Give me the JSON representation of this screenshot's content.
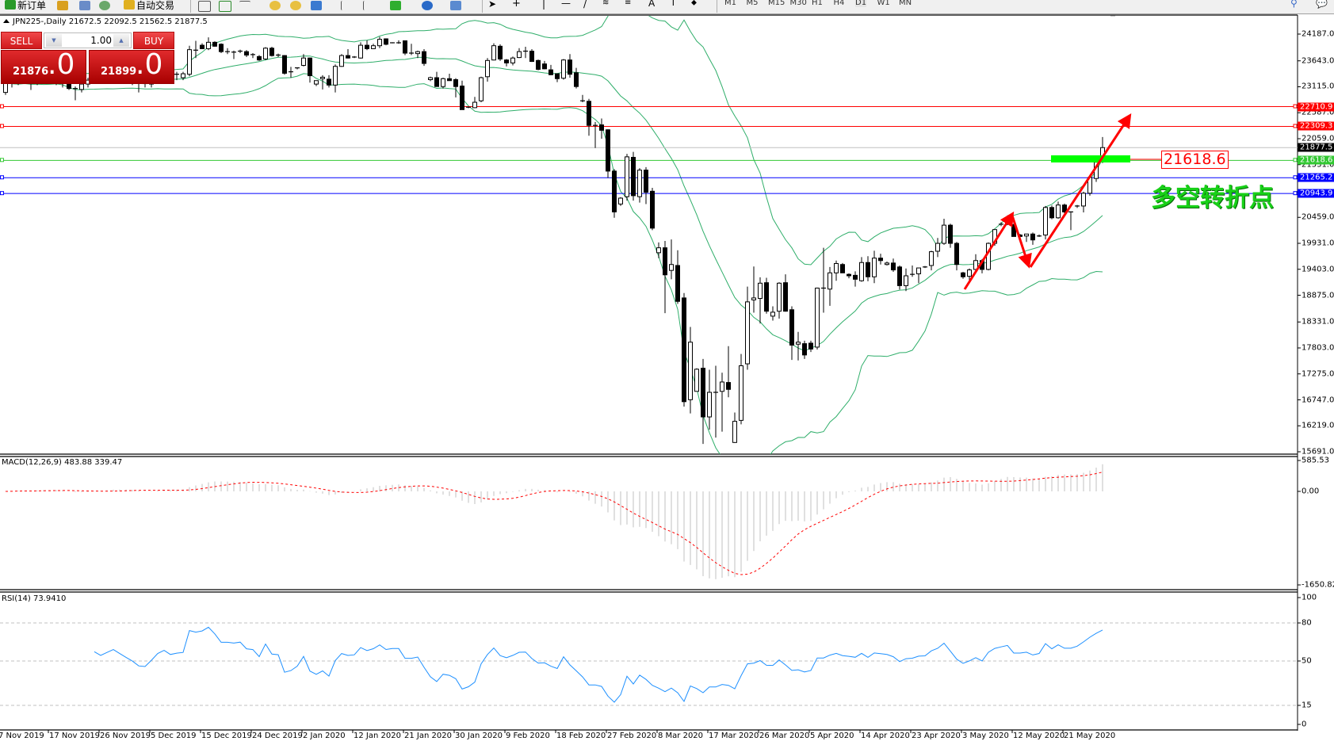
{
  "toolbar": {
    "new_order": "新订单",
    "auto_trading": "自动交易",
    "timeframes": [
      "M1",
      "M5",
      "M15",
      "M30",
      "H1",
      "H4",
      "D1",
      "W1",
      "MN"
    ],
    "active_timeframe": "D1"
  },
  "chart": {
    "title": "JPN225-,Daily  21672.5 22092.5 21562.5 21877.5",
    "symbol": "JPN225-",
    "period": "Daily"
  },
  "trade_panel": {
    "sell_label": "SELL",
    "buy_label": "BUY",
    "lot": "1.00",
    "sell_price_main": "21876",
    "sell_price_frac": ".0",
    "buy_price_main": "21899",
    "buy_price_frac": ".0"
  },
  "price_axis": [
    "24187.0",
    "23643.0",
    "23115.0",
    "22587.0",
    "22059.0",
    "21531.0",
    "20459.0",
    "19931.0",
    "19403.0",
    "18875.0",
    "18331.0",
    "17803.0",
    "17275.0",
    "16747.0",
    "16219.0",
    "15691.0"
  ],
  "levels": [
    {
      "value": "22710.9",
      "color": "#ff0000"
    },
    {
      "value": "22309.3",
      "color": "#ff0000"
    },
    {
      "value": "21877.5",
      "color": "#000000",
      "line_color": "#c0c0c0"
    },
    {
      "value": "21618.6",
      "color": "#32c832"
    },
    {
      "value": "21265.2",
      "color": "#0000ff"
    },
    {
      "value": "20943.9",
      "color": "#0000ff"
    }
  ],
  "annotations": {
    "level_note": "21618.6",
    "turning_point": "多空转折点"
  },
  "macd": {
    "label": "MACD(12,26,9) 483.88 339.47",
    "axis": [
      "585.53",
      "0.00",
      "-1650.82"
    ]
  },
  "rsi": {
    "label": "RSI(14) 73.9410",
    "axis": [
      "100",
      "80",
      "50",
      "15",
      "0"
    ]
  },
  "dates": [
    "7 Nov 2019",
    "17 Nov 2019",
    "26 Nov 2019",
    "5 Dec 2019",
    "15 Dec 2019",
    "24 Dec 2019",
    "2 Jan 2020",
    "12 Jan 2020",
    "21 Jan 2020",
    "30 Jan 2020",
    "9 Feb 2020",
    "18 Feb 2020",
    "27 Feb 2020",
    "8 Mar 2020",
    "17 Mar 2020",
    "26 Mar 2020",
    "5 Apr 2020",
    "14 Apr 2020",
    "23 Apr 2020",
    "3 May 2020",
    "12 May 2020",
    "21 May 2020"
  ],
  "colors": {
    "bands": "#2fae6a",
    "macd_hist": "#c0c0c0",
    "macd_signal": "#ff0000",
    "rsi": "#1e90ff",
    "arrows": "#ff0000",
    "zone": "#00ff00"
  },
  "chart_data": {
    "type": "candlestick",
    "ylim": [
      15691.0,
      24187.0
    ],
    "columns": [
      "open",
      "high",
      "low",
      "close"
    ],
    "ohlc": [
      [
        23000,
        23300,
        22950,
        23200
      ],
      [
        23200,
        23350,
        23100,
        23250
      ],
      [
        23250,
        23400,
        23150,
        23300
      ],
      [
        23300,
        23400,
        23200,
        23250
      ],
      [
        23250,
        23350,
        23050,
        23200
      ],
      [
        23200,
        23350,
        23150,
        23300
      ],
      [
        23300,
        23450,
        23200,
        23350
      ],
      [
        23350,
        23400,
        23200,
        23250
      ],
      [
        23250,
        23350,
        23150,
        23300
      ],
      [
        23300,
        23350,
        23100,
        23180
      ],
      [
        23180,
        23200,
        23050,
        23080
      ],
      [
        23080,
        23120,
        22840,
        23060
      ],
      [
        23060,
        23200,
        23000,
        23170
      ],
      [
        23170,
        23300,
        23100,
        23250
      ],
      [
        23250,
        23400,
        23200,
        23350
      ],
      [
        23350,
        23450,
        23250,
        23300
      ],
      [
        23300,
        23400,
        23200,
        23350
      ],
      [
        23350,
        23450,
        23250,
        23400
      ],
      [
        23400,
        23500,
        23300,
        23350
      ],
      [
        23350,
        23450,
        23200,
        23300
      ],
      [
        23300,
        23350,
        23150,
        23250
      ],
      [
        23250,
        23280,
        23000,
        23180
      ],
      [
        23180,
        23250,
        23100,
        23170
      ],
      [
        23170,
        23300,
        23100,
        23250
      ],
      [
        23250,
        23400,
        23200,
        23350
      ],
      [
        23350,
        23450,
        23300,
        23400
      ],
      [
        23400,
        23450,
        23300,
        23350
      ],
      [
        23350,
        23420,
        23250,
        23370
      ],
      [
        23300,
        23420,
        23250,
        23380
      ],
      [
        23370,
        23950,
        23330,
        23870
      ],
      [
        23860,
        24050,
        23700,
        23850
      ],
      [
        23960,
        24000,
        23880,
        23890
      ],
      [
        23890,
        24120,
        23860,
        24020
      ],
      [
        24020,
        24040,
        23930,
        23940
      ],
      [
        23980,
        24000,
        23800,
        23830
      ],
      [
        23830,
        23900,
        23780,
        23830
      ],
      [
        23820,
        23850,
        23680,
        23820
      ],
      [
        23830,
        23870,
        23800,
        23840
      ],
      [
        23830,
        23860,
        23720,
        23760
      ],
      [
        23770,
        23800,
        23700,
        23750
      ],
      [
        23730,
        23760,
        23640,
        23660
      ],
      [
        23680,
        23920,
        23660,
        23900
      ],
      [
        23900,
        23930,
        23730,
        23750
      ],
      [
        23760,
        23790,
        23720,
        23740
      ],
      [
        23750,
        23760,
        23360,
        23390
      ],
      [
        23420,
        23520,
        23300,
        23420
      ],
      [
        23480,
        23510,
        23470,
        23500
      ],
      [
        23550,
        23780,
        23530,
        23700
      ],
      [
        23700,
        23710,
        23200,
        23340
      ],
      [
        23170,
        23240,
        23130,
        23240
      ],
      [
        23280,
        23350,
        23060,
        23310
      ],
      [
        23270,
        23350,
        23100,
        23150
      ],
      [
        23150,
        23570,
        23000,
        23530
      ],
      [
        23530,
        23780,
        23520,
        23750
      ],
      [
        23750,
        23880,
        23690,
        23700
      ],
      [
        23720,
        23740,
        23700,
        23720
      ],
      [
        23700,
        24020,
        23690,
        23960
      ],
      [
        23960,
        24060,
        23860,
        23890
      ],
      [
        23890,
        23990,
        23880,
        23950
      ],
      [
        23950,
        24130,
        23900,
        24080
      ],
      [
        24090,
        24100,
        23960,
        23980
      ],
      [
        24010,
        24020,
        24000,
        24010
      ],
      [
        24010,
        24060,
        23990,
        24010
      ],
      [
        24050,
        24060,
        23760,
        23800
      ],
      [
        23800,
        23990,
        23760,
        23800
      ],
      [
        23790,
        23850,
        23700,
        23830
      ],
      [
        23830,
        23880,
        23540,
        23590
      ],
      [
        23260,
        23320,
        23230,
        23300
      ],
      [
        23300,
        23420,
        23120,
        23120
      ],
      [
        23120,
        23300,
        23080,
        23280
      ],
      [
        23280,
        23380,
        23240,
        23240
      ],
      [
        23260,
        23290,
        22900,
        23120
      ],
      [
        23130,
        23240,
        22650,
        22650
      ],
      [
        22700,
        22710,
        22680,
        22700
      ],
      [
        22690,
        22910,
        22680,
        22800
      ],
      [
        22830,
        23320,
        22800,
        23300
      ],
      [
        23320,
        23700,
        23220,
        23650
      ],
      [
        23660,
        24000,
        23650,
        23950
      ],
      [
        23940,
        23980,
        23640,
        23680
      ],
      [
        23660,
        23680,
        23530,
        23600
      ],
      [
        23600,
        23730,
        23550,
        23700
      ],
      [
        23710,
        23900,
        23700,
        23830
      ],
      [
        23840,
        23930,
        23700,
        23840
      ],
      [
        23840,
        23880,
        23620,
        23630
      ],
      [
        23650,
        23670,
        23450,
        23470
      ],
      [
        23580,
        23640,
        23470,
        23480
      ],
      [
        23460,
        23560,
        23350,
        23360
      ],
      [
        23380,
        23390,
        23210,
        23280
      ],
      [
        23290,
        23680,
        23260,
        23660
      ],
      [
        23660,
        23780,
        23300,
        23370
      ],
      [
        23400,
        23500,
        23080,
        23120
      ],
      [
        22830,
        22950,
        22800,
        22820
      ],
      [
        22820,
        22870,
        22120,
        22330
      ],
      [
        22330,
        22400,
        21870,
        22330
      ],
      [
        22340,
        22470,
        22060,
        22230
      ],
      [
        22240,
        22250,
        21260,
        21400
      ],
      [
        21400,
        21440,
        20450,
        20570
      ],
      [
        20730,
        20870,
        20690,
        20850
      ],
      [
        20880,
        21750,
        20800,
        21690
      ],
      [
        21680,
        21790,
        20800,
        20900
      ],
      [
        20880,
        21460,
        20760,
        21420
      ],
      [
        21420,
        21480,
        20730,
        20970
      ],
      [
        20990,
        21060,
        20200,
        20240
      ],
      [
        19740,
        19950,
        19630,
        19840
      ],
      [
        19840,
        19980,
        18510,
        19290
      ],
      [
        19380,
        20010,
        19200,
        19500
      ],
      [
        19480,
        19790,
        18700,
        18750
      ],
      [
        18820,
        18920,
        16610,
        16710
      ],
      [
        16750,
        18230,
        16470,
        17920
      ],
      [
        16920,
        17390,
        16920,
        17370
      ],
      [
        17390,
        17580,
        15850,
        16400
      ],
      [
        16400,
        17360,
        16140,
        16900
      ],
      [
        16900,
        17440,
        15980,
        16900
      ],
      [
        16920,
        17300,
        16100,
        17110
      ],
      [
        17100,
        17840,
        16800,
        16960
      ],
      [
        15880,
        16490,
        15870,
        16310
      ],
      [
        16330,
        17680,
        16250,
        17440
      ],
      [
        17480,
        19050,
        17360,
        18740
      ],
      [
        18780,
        19460,
        18520,
        18820
      ],
      [
        18810,
        19240,
        18300,
        19120
      ],
      [
        19130,
        19230,
        18500,
        18550
      ],
      [
        18450,
        18650,
        18360,
        18530
      ],
      [
        18550,
        19140,
        18400,
        19120
      ],
      [
        19130,
        19300,
        18540,
        18550
      ],
      [
        18580,
        18650,
        17560,
        17860
      ],
      [
        17880,
        18130,
        17550,
        17920
      ],
      [
        17890,
        17950,
        17580,
        17660
      ],
      [
        17900,
        17950,
        17720,
        17780
      ],
      [
        17820,
        19030,
        17770,
        19020
      ],
      [
        19020,
        19840,
        18520,
        19020
      ],
      [
        19000,
        19450,
        18660,
        19330
      ],
      [
        19330,
        19580,
        19170,
        19520
      ],
      [
        19500,
        19530,
        19350,
        19330
      ],
      [
        19300,
        19320,
        19220,
        19270
      ],
      [
        19280,
        19360,
        19050,
        19200
      ],
      [
        19170,
        19650,
        19150,
        19540
      ],
      [
        19540,
        19670,
        19160,
        19250
      ],
      [
        19250,
        19780,
        19120,
        19630
      ],
      [
        19630,
        19720,
        19500,
        19580
      ],
      [
        19500,
        19560,
        19480,
        19530
      ],
      [
        19530,
        19620,
        19350,
        19390
      ],
      [
        19450,
        19480,
        18990,
        19070
      ],
      [
        19070,
        19420,
        18960,
        19270
      ],
      [
        19300,
        19480,
        19250,
        19300
      ],
      [
        19310,
        19380,
        19120,
        19430
      ],
      [
        19450,
        19470,
        19430,
        19450
      ],
      [
        19480,
        19780,
        19380,
        19760
      ],
      [
        19770,
        20040,
        19650,
        19930
      ],
      [
        19930,
        20430,
        19900,
        20300
      ],
      [
        20300,
        20330,
        19840,
        19930
      ],
      [
        19930,
        19960,
        19380,
        19500
      ],
      [
        19330,
        19350,
        19210,
        19250
      ],
      [
        19260,
        19420,
        19140,
        19390
      ],
      [
        19400,
        19710,
        19350,
        19580
      ],
      [
        19580,
        19610,
        19320,
        19400
      ],
      [
        19400,
        19950,
        19380,
        19930
      ],
      [
        19930,
        20220,
        19880,
        20210
      ],
      [
        20300,
        20360,
        20280,
        20320
      ],
      [
        20330,
        20500,
        20300,
        20420
      ],
      [
        20310,
        20350,
        20070,
        20070
      ],
      [
        20100,
        20120,
        20020,
        20070
      ],
      [
        20080,
        20120,
        19960,
        20120
      ],
      [
        20120,
        20150,
        19900,
        20000
      ],
      [
        20080,
        20110,
        20060,
        20080
      ],
      [
        20100,
        20690,
        20010,
        20660
      ],
      [
        20660,
        20700,
        20420,
        20450
      ],
      [
        20450,
        20780,
        20430,
        20710
      ],
      [
        20710,
        20740,
        20540,
        20570
      ],
      [
        20570,
        20580,
        20200,
        20570
      ],
      [
        20670,
        20710,
        20650,
        20690
      ],
      [
        20690,
        20980,
        20560,
        20950
      ],
      [
        20950,
        21300,
        20900,
        21270
      ],
      [
        21250,
        21640,
        21180,
        21580
      ],
      [
        21672.5,
        22092.5,
        21562.5,
        21877.5
      ]
    ],
    "indicators": [
      "Bollinger Bands(20,2)",
      "MACD(12,26,9)",
      "RSI(14)"
    ]
  }
}
